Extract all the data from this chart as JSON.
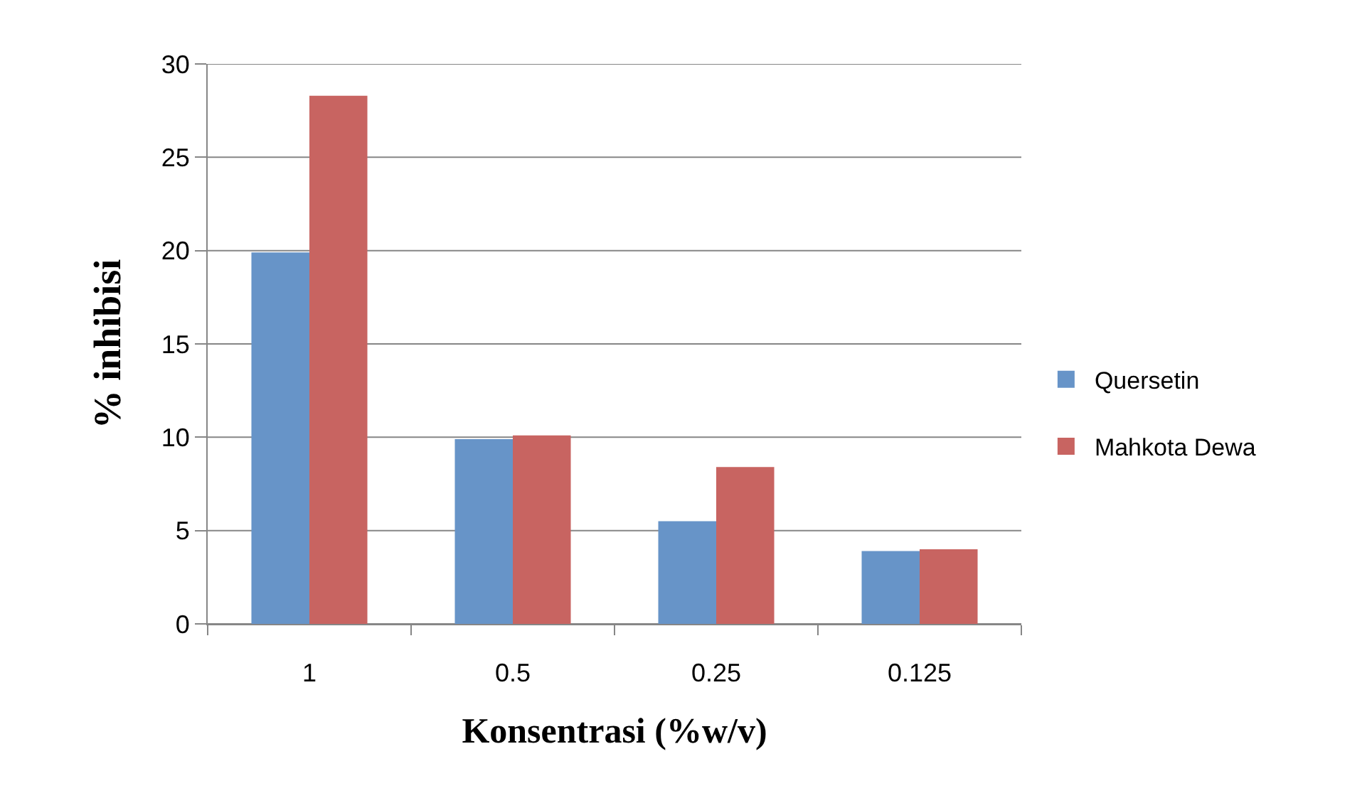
{
  "chart_data": {
    "type": "bar",
    "xlabel": "Konsentrasi (%w/v)",
    "ylabel": "% inhibisi",
    "categories": [
      "1",
      "0.5",
      "0.25",
      "0.125"
    ],
    "series": [
      {
        "name": "Quersetin",
        "color": "#6794c8",
        "values": [
          19.9,
          9.9,
          5.5,
          3.9
        ]
      },
      {
        "name": "Mahkota Dewa",
        "color": "#c86461",
        "values": [
          28.3,
          10.1,
          8.4,
          4.0
        ]
      }
    ],
    "ylim": [
      0,
      30
    ],
    "yticks": [
      0,
      5,
      10,
      15,
      20,
      25,
      30
    ],
    "grid": "y",
    "legend": "right"
  }
}
